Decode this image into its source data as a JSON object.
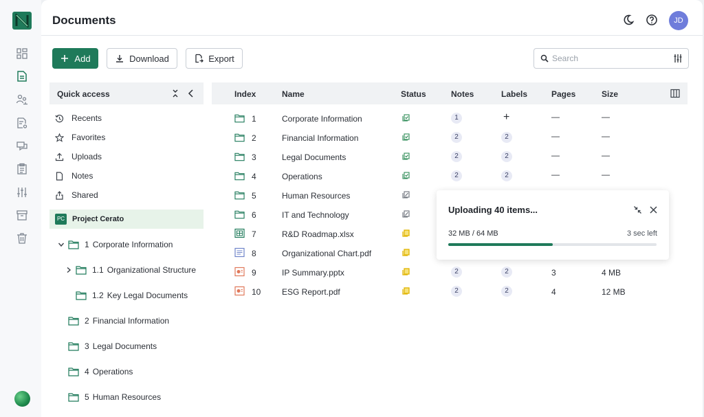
{
  "app": {
    "title": "Documents",
    "avatar_initials": "JD",
    "accent": "#1f7a5a"
  },
  "toolbar": {
    "add_label": "Add",
    "download_label": "Download",
    "export_label": "Export"
  },
  "search": {
    "placeholder": "Search",
    "value": ""
  },
  "quick_access": {
    "title": "Quick access",
    "items": [
      {
        "label": "Recents",
        "icon": "history-icon"
      },
      {
        "label": "Favorites",
        "icon": "star-icon"
      },
      {
        "label": "Uploads",
        "icon": "upload-icon"
      },
      {
        "label": "Notes",
        "icon": "note-icon"
      },
      {
        "label": "Shared",
        "icon": "share-icon"
      }
    ]
  },
  "project": {
    "badge": "PC",
    "name": "Project Cerato"
  },
  "tree": [
    {
      "num": "1",
      "label": "Corporate Information",
      "expanded": true
    },
    {
      "num": "1.1",
      "label": "Organizational Structure",
      "collapsed_child": true
    },
    {
      "num": "1.2",
      "label": "Key Legal Documents"
    },
    {
      "num": "2",
      "label": "Financial Information"
    },
    {
      "num": "3",
      "label": "Legal Documents"
    },
    {
      "num": "4",
      "label": "Operations"
    },
    {
      "num": "5",
      "label": "Human Resources"
    }
  ],
  "table": {
    "columns": [
      "Index",
      "Name",
      "Status",
      "Notes",
      "Labels",
      "Pages",
      "Size"
    ],
    "rows": [
      {
        "index": "1",
        "name": "Corporate Information",
        "type": "folder",
        "status": "green",
        "notes": "1",
        "labels": "+",
        "pages": "—",
        "size": "—"
      },
      {
        "index": "2",
        "name": "Financial Information",
        "type": "folder",
        "status": "green",
        "notes": "2",
        "labels": "2",
        "pages": "—",
        "size": "—"
      },
      {
        "index": "3",
        "name": "Legal Documents",
        "type": "folder",
        "status": "green",
        "notes": "2",
        "labels": "2",
        "pages": "—",
        "size": "—"
      },
      {
        "index": "4",
        "name": "Operations",
        "type": "folder",
        "status": "green",
        "notes": "2",
        "labels": "2",
        "pages": "—",
        "size": "—"
      },
      {
        "index": "5",
        "name": "Human Resources",
        "type": "folder",
        "status": "gray",
        "notes": "",
        "labels": "",
        "pages": "",
        "size": ""
      },
      {
        "index": "6",
        "name": "IT and Technology",
        "type": "folder",
        "status": "gray",
        "notes": "",
        "labels": "",
        "pages": "",
        "size": ""
      },
      {
        "index": "7",
        "name": "R&D Roadmap.xlsx",
        "type": "xlsx",
        "status": "yellow",
        "notes": "",
        "labels": "",
        "pages": "",
        "size": ""
      },
      {
        "index": "8",
        "name": "Organizational Chart.pdf",
        "type": "doc",
        "status": "yellow",
        "notes": "",
        "labels": "",
        "pages": "",
        "size": ""
      },
      {
        "index": "9",
        "name": "IP Summary.pptx",
        "type": "pptx",
        "status": "yellow",
        "notes": "2",
        "labels": "2",
        "pages": "3",
        "size": "4 MB"
      },
      {
        "index": "10",
        "name": "ESG Report.pdf",
        "type": "pptx",
        "status": "yellow",
        "notes": "2",
        "labels": "2",
        "pages": "4",
        "size": "12 MB"
      }
    ]
  },
  "upload": {
    "title": "Uploading 40 items...",
    "progress_text": "32 MB / 64 MB",
    "eta": "3 sec left",
    "progress": 0.5
  },
  "colors": {
    "status_green": "#2e8b57",
    "status_gray": "#6b717a",
    "status_yellow": "#e0b400"
  }
}
